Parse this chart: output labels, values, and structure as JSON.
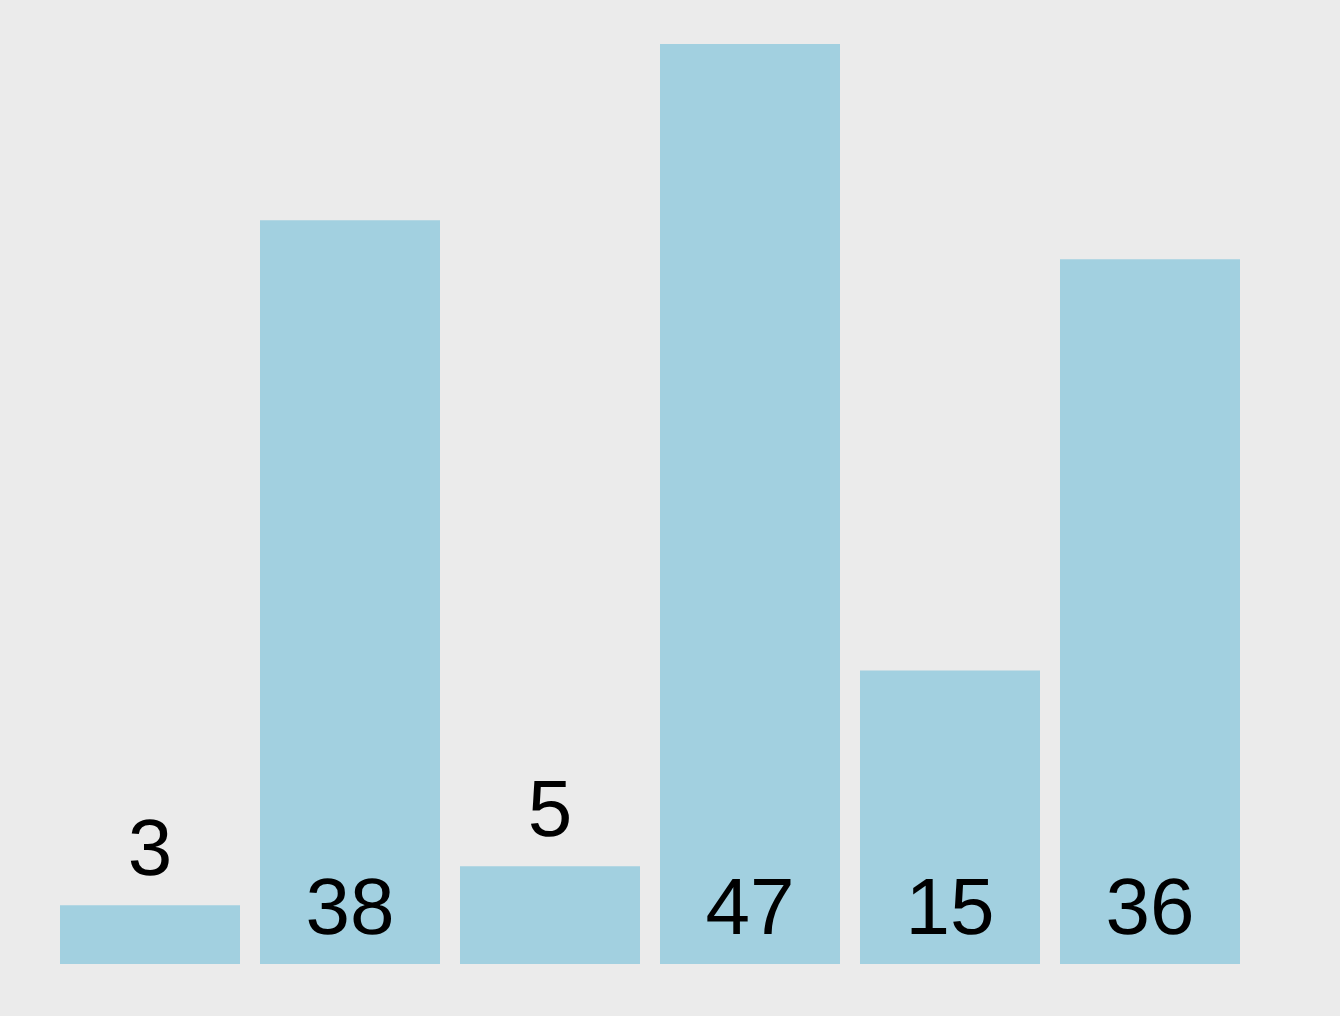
{
  "chart_data": {
    "type": "bar",
    "categories": [
      null,
      null,
      null,
      null,
      null,
      null
    ],
    "values": [
      3,
      38,
      5,
      47,
      15,
      36
    ],
    "color": "#a2d0e0",
    "data_labels": true,
    "tick_labels": false,
    "grid": false,
    "legend": false
  }
}
